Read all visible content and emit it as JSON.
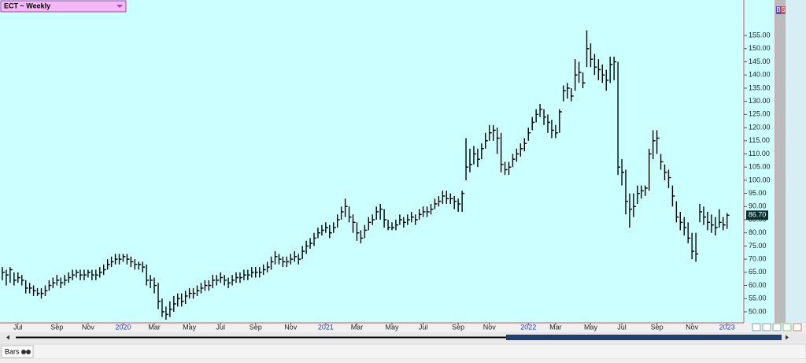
{
  "header": {
    "symbol_label": "ECT ~ Weekly",
    "toolbar_labels": [
      "B",
      "S"
    ]
  },
  "footer": {
    "mode_label": "Bars"
  },
  "chart_data": {
    "type": "ohlc",
    "categories": [
      null,
      null,
      null,
      null,
      "Jul",
      null,
      null,
      null,
      null,
      null,
      null,
      null,
      null,
      null,
      "Sep",
      null,
      null,
      null,
      null,
      null,
      null,
      null,
      "Nov",
      null,
      null,
      null,
      null,
      null,
      null,
      null,
      null,
      "2020",
      null,
      null,
      null,
      null,
      null,
      null,
      null,
      "Mar",
      null,
      null,
      null,
      null,
      null,
      null,
      null,
      null,
      "May",
      null,
      null,
      null,
      null,
      null,
      null,
      null,
      "Jul",
      null,
      null,
      null,
      null,
      null,
      null,
      null,
      null,
      "Sep",
      null,
      null,
      null,
      null,
      null,
      null,
      null,
      null,
      "Nov",
      null,
      null,
      null,
      null,
      null,
      null,
      null,
      null,
      "2021",
      null,
      null,
      null,
      null,
      null,
      null,
      null,
      "Mar",
      null,
      null,
      null,
      null,
      null,
      null,
      null,
      null,
      "May",
      null,
      null,
      null,
      null,
      null,
      null,
      null,
      "Jul",
      null,
      null,
      null,
      null,
      null,
      null,
      null,
      null,
      "Sep",
      null,
      null,
      null,
      null,
      null,
      null,
      null,
      "Nov",
      null,
      null,
      null,
      null,
      null,
      null,
      null,
      null,
      null,
      "2022",
      null,
      null,
      null,
      null,
      null,
      null,
      "Mar",
      null,
      null,
      null,
      null,
      null,
      null,
      null,
      null,
      "May",
      null,
      null,
      null,
      null,
      null,
      null,
      null,
      "Jul",
      null,
      null,
      null,
      null,
      null,
      null,
      null,
      null,
      "Sep",
      null,
      null,
      null,
      null,
      null,
      null,
      null,
      null,
      "Nov",
      null,
      null,
      null,
      null,
      null,
      null,
      null,
      null,
      "2023"
    ],
    "series": [
      {
        "color": "#000000",
        "high": [
          67,
          66,
          67,
          65,
          65,
          64,
          62,
          61,
          60,
          59,
          59,
          60,
          62,
          63,
          64,
          63,
          64,
          65,
          66,
          66,
          66,
          66,
          66,
          66,
          66,
          67,
          68,
          70,
          71,
          72,
          72,
          72,
          72,
          71,
          70,
          69,
          69,
          68,
          64,
          63,
          61,
          55,
          52,
          54,
          56,
          57,
          57,
          58,
          59,
          59,
          60,
          61,
          62,
          62,
          64,
          64,
          65,
          64,
          63,
          64,
          65,
          65,
          66,
          66,
          67,
          67,
          67,
          68,
          69,
          71,
          73,
          72,
          71,
          71,
          72,
          73,
          72,
          75,
          77,
          78,
          80,
          82,
          83,
          84,
          83,
          84,
          87,
          90,
          93,
          90,
          87,
          84,
          81,
          83,
          86,
          87,
          90,
          91,
          89,
          85,
          84,
          85,
          87,
          86,
          87,
          88,
          87,
          89,
          90,
          90,
          91,
          93,
          94,
          96,
          96,
          95,
          94,
          93,
          96,
          116,
          112,
          113,
          112,
          114,
          118,
          121,
          121,
          120,
          118,
          107,
          107,
          110,
          112,
          114,
          116,
          120,
          124,
          127,
          129,
          127,
          125,
          123,
          121,
          127,
          136,
          137,
          135,
          146,
          145,
          141,
          157,
          152,
          148,
          146,
          144,
          142,
          147,
          147,
          145,
          108,
          104,
          95,
          95,
          98,
          98,
          98,
          112,
          119,
          119,
          110,
          106,
          104,
          98,
          92,
          88,
          86,
          84,
          80,
          80,
          91,
          90,
          88,
          87,
          86,
          89,
          86,
          87.5
        ],
        "low": [
          62,
          60,
          61,
          60,
          61,
          60,
          57,
          57,
          56,
          56,
          55,
          56,
          58,
          59,
          60,
          59,
          60,
          61,
          62,
          63,
          62,
          62,
          63,
          62,
          62,
          63,
          64,
          66,
          67,
          68,
          68,
          69,
          68,
          67,
          66,
          66,
          65,
          60,
          59,
          57,
          51,
          48,
          47,
          48,
          50,
          52,
          52,
          53,
          55,
          55,
          56,
          57,
          58,
          58,
          59,
          60,
          61,
          60,
          59,
          60,
          61,
          61,
          62,
          62,
          63,
          63,
          63,
          64,
          65,
          66,
          68,
          68,
          67,
          67,
          68,
          69,
          68,
          70,
          72,
          74,
          75,
          78,
          79,
          80,
          78,
          80,
          82,
          85,
          86,
          84,
          80,
          77,
          76,
          78,
          81,
          83,
          85,
          85,
          82,
          81,
          81,
          81,
          83,
          82,
          83,
          84,
          83,
          85,
          86,
          86,
          87,
          89,
          90,
          91,
          91,
          91,
          89,
          88,
          88,
          100,
          103,
          106,
          105,
          108,
          112,
          115,
          115,
          110,
          103,
          102,
          102,
          105,
          107,
          109,
          111,
          115,
          119,
          122,
          124,
          121,
          118,
          116,
          116,
          118,
          130,
          131,
          130,
          134,
          137,
          135,
          143,
          143,
          140,
          138,
          137,
          134,
          137,
          138,
          102,
          98,
          87,
          82,
          86,
          91,
          93,
          94,
          96,
          108,
          110,
          104,
          100,
          97,
          90,
          84,
          81,
          79,
          76,
          70,
          69,
          84,
          83,
          81,
          80,
          79,
          82,
          81,
          81.5
        ],
        "close": [
          65,
          64,
          66,
          62,
          63,
          62,
          59,
          59,
          58,
          57,
          57,
          58,
          60,
          61,
          62,
          61,
          62,
          63,
          64,
          65,
          64,
          64,
          65,
          64,
          64,
          65,
          66,
          68,
          69,
          70,
          70,
          71,
          70,
          69,
          68,
          68,
          67,
          62,
          62,
          60,
          54,
          50,
          49,
          51,
          53,
          55,
          54,
          56,
          57,
          57,
          58,
          59,
          60,
          60,
          62,
          62,
          63,
          62,
          61,
          62,
          63,
          63,
          64,
          64,
          65,
          65,
          65,
          66,
          67,
          69,
          71,
          70,
          69,
          69,
          70,
          71,
          70,
          73,
          75,
          76,
          78,
          80,
          81,
          82,
          80,
          82,
          85,
          88,
          90,
          86,
          84,
          80,
          78,
          81,
          84,
          85,
          88,
          89,
          85,
          82,
          82,
          83,
          85,
          84,
          85,
          86,
          85,
          87,
          88,
          88,
          89,
          91,
          92,
          94,
          93,
          93,
          92,
          91,
          95,
          105,
          106,
          110,
          108,
          112,
          115,
          118,
          119,
          116,
          106,
          104,
          105,
          108,
          110,
          112,
          114,
          118,
          122,
          125,
          127,
          124,
          122,
          119,
          118,
          126,
          134,
          135,
          132,
          140,
          141,
          137,
          150,
          146,
          143,
          142,
          140,
          138,
          144,
          145,
          105,
          103,
          92,
          89,
          90,
          95,
          96,
          97,
          110,
          115,
          116,
          107,
          103,
          101,
          94,
          86,
          84,
          82,
          78,
          73,
          72,
          88,
          86,
          84,
          83,
          82,
          84,
          83,
          86.7
        ],
        "last_value_label": "86.70"
      }
    ],
    "ylim": [
      45.8,
      168.5
    ],
    "yticks": [
      {
        "value": 50,
        "label": "50.00"
      },
      {
        "value": 55,
        "label": "55.00"
      },
      {
        "value": 60,
        "label": "60.00"
      },
      {
        "value": 65,
        "label": "65.00"
      },
      {
        "value": 70,
        "label": "70.00"
      },
      {
        "value": 75,
        "label": "75.00"
      },
      {
        "value": 80,
        "label": "80.00"
      },
      {
        "value": 85,
        "label": "85.00"
      },
      {
        "value": 90,
        "label": "90.00"
      },
      {
        "value": 95,
        "label": "95.00"
      },
      {
        "value": 100,
        "label": "100.00"
      },
      {
        "value": 105,
        "label": "105.00"
      },
      {
        "value": 110,
        "label": "110.00"
      },
      {
        "value": 115,
        "label": "115.00"
      },
      {
        "value": 120,
        "label": "120.00"
      },
      {
        "value": 125,
        "label": "125.00"
      },
      {
        "value": 130,
        "label": "130.00"
      },
      {
        "value": 135,
        "label": "135.00"
      },
      {
        "value": 140,
        "label": "140.00"
      },
      {
        "value": 145,
        "label": "145.00"
      },
      {
        "value": 150,
        "label": "150.00"
      },
      {
        "value": 155,
        "label": "155.00"
      }
    ],
    "background": "#ccffff"
  }
}
